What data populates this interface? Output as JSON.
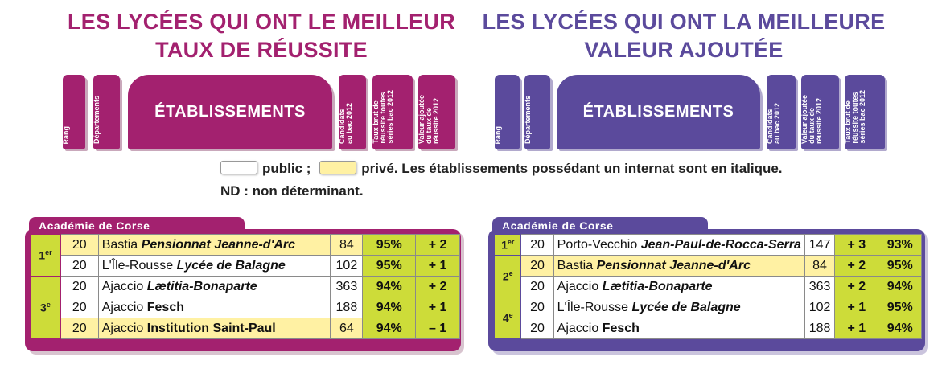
{
  "left": {
    "title_line1": "LES LYCÉES QUI ONT LE MEILLEUR",
    "title_line2": "TAUX DE RÉUSSITE",
    "columns": {
      "rang": "Rang",
      "departements": "Départements",
      "etablissements": "ÉTABLISSEMENTS",
      "candidats": "Candidats\nau bac 2012",
      "taux_brut": "Taux brut de\nréussite toutes\nséries bac 2012",
      "valeur_ajoutee": "Valeur ajoutée\ndu taux de\nréussite 2012"
    },
    "academy": "Académie de Corse",
    "rows": [
      {
        "rank": "1er",
        "dep": "20",
        "city": "Bastia",
        "name": "Pensionnat Jeanne-d'Arc",
        "name_italic": true,
        "candidats": "84",
        "taux": "95%",
        "va": "+ 2",
        "type": "prive"
      },
      {
        "rank": "",
        "dep": "20",
        "city": "L'Île-Rousse",
        "name": "Lycée de Balagne",
        "name_italic": true,
        "candidats": "102",
        "taux": "95%",
        "va": "+ 1",
        "type": "public"
      },
      {
        "rank": "3e",
        "dep": "20",
        "city": "Ajaccio",
        "name": "Lætitia-Bonaparte",
        "name_italic": true,
        "candidats": "363",
        "taux": "94%",
        "va": "+ 2",
        "type": "public"
      },
      {
        "rank": "",
        "dep": "20",
        "city": "Ajaccio",
        "name": "Fesch",
        "name_italic": false,
        "candidats": "188",
        "taux": "94%",
        "va": "+ 1",
        "type": "public"
      },
      {
        "rank": "",
        "dep": "20",
        "city": "Ajaccio",
        "name": "Institution Saint-Paul",
        "name_italic": false,
        "candidats": "64",
        "taux": "94%",
        "va": "– 1",
        "type": "prive"
      }
    ]
  },
  "right": {
    "title_line1": "LES LYCÉES QUI ONT LA MEILLEURE",
    "title_line2": "VALEUR AJOUTÉE",
    "columns": {
      "rang": "Rang",
      "departements": "Départements",
      "etablissements": "ÉTABLISSEMENTS",
      "candidats": "Candidats\nau bac 2012",
      "valeur_ajoutee": "Valeur ajoutée\ndu taux de\nréussite 2012",
      "taux_brut": "Taux brut de\nréussite toutes\nséries bac 2012"
    },
    "academy": "Académie de Corse",
    "rows": [
      {
        "rank": "1er",
        "dep": "20",
        "city": "Porto-Vecchio",
        "name": "Jean-Paul-de-Rocca-Serra",
        "name_italic": true,
        "candidats": "147",
        "va": "+ 3",
        "taux": "93%",
        "type": "public"
      },
      {
        "rank": "2e",
        "dep": "20",
        "city": "Bastia",
        "name": "Pensionnat Jeanne-d'Arc",
        "name_italic": true,
        "candidats": "84",
        "va": "+ 2",
        "taux": "95%",
        "type": "prive"
      },
      {
        "rank": "",
        "dep": "20",
        "city": "Ajaccio",
        "name": "Lætitia-Bonaparte",
        "name_italic": true,
        "candidats": "363",
        "va": "+ 2",
        "taux": "94%",
        "type": "public"
      },
      {
        "rank": "4e",
        "dep": "20",
        "city": "L'Île-Rousse",
        "name": "Lycée de Balagne",
        "name_italic": true,
        "candidats": "102",
        "va": "+ 1",
        "taux": "95%",
        "type": "public"
      },
      {
        "rank": "",
        "dep": "20",
        "city": "Ajaccio",
        "name": "Fesch",
        "name_italic": false,
        "candidats": "188",
        "va": "+ 1",
        "taux": "94%",
        "type": "public"
      }
    ]
  },
  "legend": {
    "public": "public ;",
    "prive": "privé. Les établissements possédant un internat sont en italique.",
    "nd": "ND : non déterminant."
  },
  "colors": {
    "left_accent": "#a3216f",
    "right_accent": "#5b4a9c",
    "rank_green": "#cddc39",
    "prive_yellow": "#fff1a3"
  }
}
